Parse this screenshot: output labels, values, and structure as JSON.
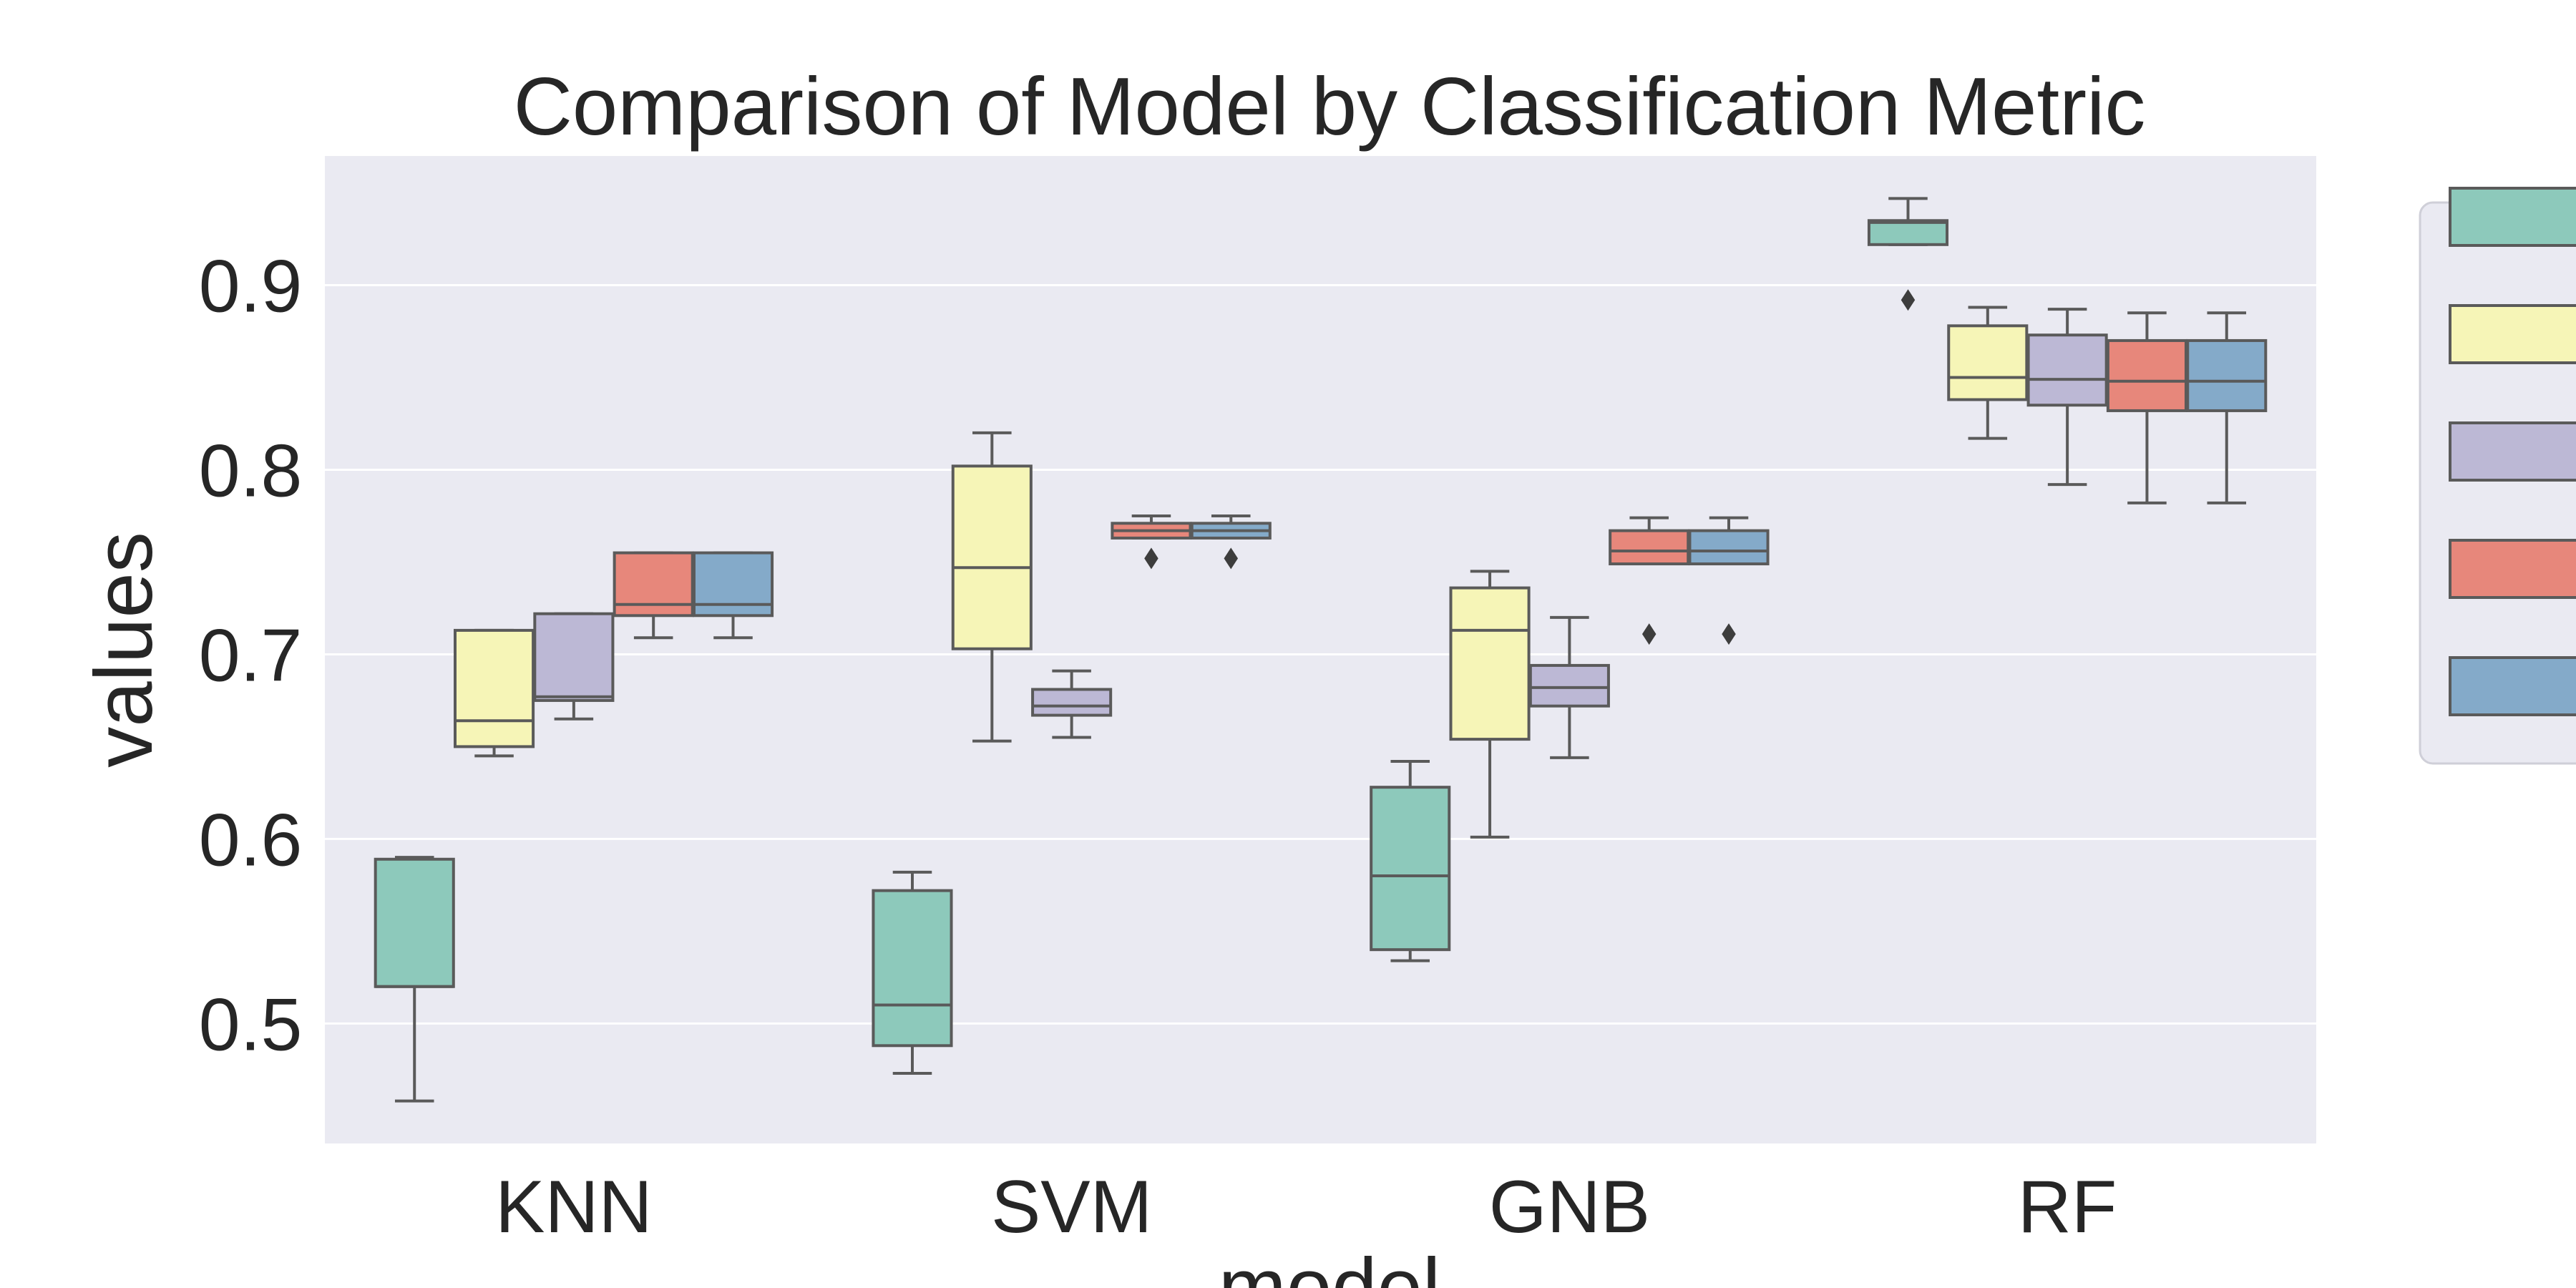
{
  "chart_data": {
    "type": "boxplot",
    "title": "Comparison of Model by Classification Metric",
    "xlabel": "model",
    "ylabel": "values",
    "categories": [
      "KNN",
      "SVM",
      "GNB",
      "RF"
    ],
    "ylim": [
      0.435,
      0.97
    ],
    "yticks": [
      0.5,
      0.6,
      0.7,
      0.8,
      0.9
    ],
    "ytick_labels": [
      "0.5",
      "0.6",
      "0.7",
      "0.8",
      "0.9"
    ],
    "grid": true,
    "legend_position": "right (outside plot, labels cropped)",
    "series_colors": [
      "#8dc9bb",
      "#f6f5b7",
      "#bcb8d5",
      "#e7877b",
      "#84aac9"
    ],
    "background": "#eaeaf2",
    "series": [
      {
        "boxes": [
          {
            "whislo": 0.458,
            "q1": 0.52,
            "med": 0.52,
            "q3": 0.589,
            "whishi": 0.59,
            "fliers": []
          },
          {
            "whislo": 0.473,
            "q1": 0.488,
            "med": 0.51,
            "q3": 0.572,
            "whishi": 0.582,
            "fliers": []
          },
          {
            "whislo": 0.534,
            "q1": 0.54,
            "med": 0.58,
            "q3": 0.628,
            "whishi": 0.642,
            "fliers": []
          },
          {
            "whislo": 0.922,
            "q1": 0.922,
            "med": 0.934,
            "q3": 0.935,
            "whishi": 0.947,
            "fliers": [
              0.892
            ]
          }
        ]
      },
      {
        "boxes": [
          {
            "whislo": 0.645,
            "q1": 0.65,
            "med": 0.664,
            "q3": 0.713,
            "whishi": 0.713,
            "fliers": []
          },
          {
            "whislo": 0.653,
            "q1": 0.703,
            "med": 0.747,
            "q3": 0.802,
            "whishi": 0.82,
            "fliers": []
          },
          {
            "whislo": 0.601,
            "q1": 0.654,
            "med": 0.713,
            "q3": 0.736,
            "whishi": 0.745,
            "fliers": []
          },
          {
            "whislo": 0.817,
            "q1": 0.838,
            "med": 0.85,
            "q3": 0.878,
            "whishi": 0.888,
            "fliers": []
          }
        ]
      },
      {
        "boxes": [
          {
            "whislo": 0.665,
            "q1": 0.675,
            "med": 0.677,
            "q3": 0.722,
            "whishi": 0.722,
            "fliers": []
          },
          {
            "whislo": 0.655,
            "q1": 0.667,
            "med": 0.672,
            "q3": 0.681,
            "whishi": 0.691,
            "fliers": []
          },
          {
            "whislo": 0.644,
            "q1": 0.672,
            "med": 0.682,
            "q3": 0.694,
            "whishi": 0.72,
            "fliers": []
          },
          {
            "whislo": 0.792,
            "q1": 0.835,
            "med": 0.849,
            "q3": 0.873,
            "whishi": 0.887,
            "fliers": []
          }
        ]
      },
      {
        "boxes": [
          {
            "whislo": 0.709,
            "q1": 0.721,
            "med": 0.727,
            "q3": 0.755,
            "whishi": 0.755,
            "fliers": []
          },
          {
            "whislo": 0.763,
            "q1": 0.763,
            "med": 0.767,
            "q3": 0.771,
            "whishi": 0.775,
            "fliers": [
              0.752
            ]
          },
          {
            "whislo": 0.749,
            "q1": 0.749,
            "med": 0.756,
            "q3": 0.767,
            "whishi": 0.774,
            "fliers": [
              0.711
            ]
          },
          {
            "whislo": 0.782,
            "q1": 0.832,
            "med": 0.848,
            "q3": 0.87,
            "whishi": 0.885,
            "fliers": []
          }
        ]
      },
      {
        "boxes": [
          {
            "whislo": 0.709,
            "q1": 0.721,
            "med": 0.727,
            "q3": 0.755,
            "whishi": 0.755,
            "fliers": []
          },
          {
            "whislo": 0.763,
            "q1": 0.763,
            "med": 0.767,
            "q3": 0.771,
            "whishi": 0.775,
            "fliers": [
              0.752
            ]
          },
          {
            "whislo": 0.749,
            "q1": 0.749,
            "med": 0.756,
            "q3": 0.767,
            "whishi": 0.774,
            "fliers": [
              0.711
            ]
          },
          {
            "whislo": 0.782,
            "q1": 0.832,
            "med": 0.848,
            "q3": 0.87,
            "whishi": 0.885,
            "fliers": []
          }
        ]
      }
    ]
  }
}
